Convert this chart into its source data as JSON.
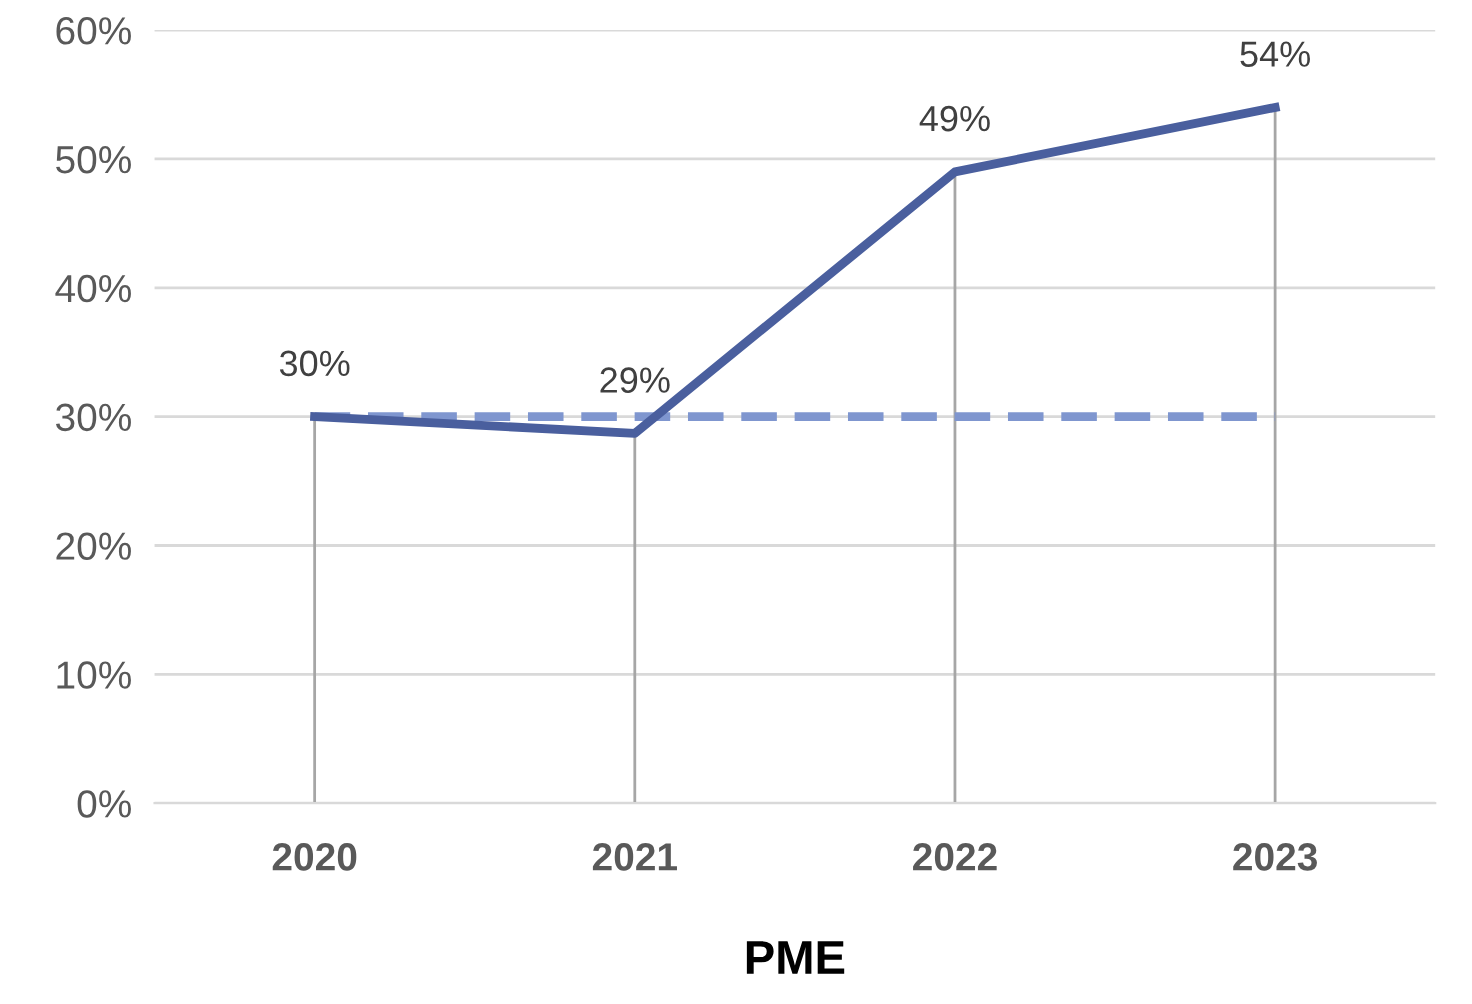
{
  "chart_data": {
    "type": "line",
    "xlabel": "PME",
    "categories": [
      "2020",
      "2021",
      "2022",
      "2023"
    ],
    "series": [
      {
        "color": "#4a5f9e",
        "values": [
          30,
          28.7,
          49,
          54
        ],
        "value_labels": [
          "30%",
          "29%",
          "49%",
          "54%"
        ],
        "line_style": "solid"
      },
      {
        "color": "#7f96cf",
        "values": [
          30,
          30,
          30,
          30
        ],
        "line_style": "dashed"
      }
    ],
    "ylim": [
      0,
      60
    ],
    "yticks": [
      {
        "value": 0,
        "label": "0%"
      },
      {
        "value": 10,
        "label": "10%"
      },
      {
        "value": 20,
        "label": "20%"
      },
      {
        "value": 30,
        "label": "30%"
      },
      {
        "value": 40,
        "label": "40%"
      },
      {
        "value": 50,
        "label": "50%"
      },
      {
        "value": 60,
        "label": "60%"
      }
    ],
    "grid": true,
    "marker": "none",
    "legend": false
  }
}
